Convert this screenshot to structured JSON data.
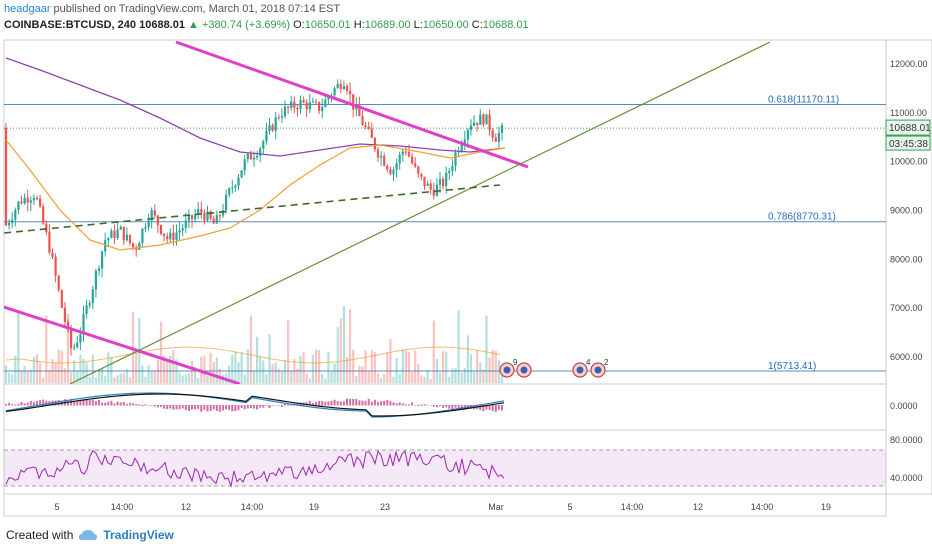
{
  "header": {
    "user": "headgaar",
    "published": " published on TradingView.com, March 01, 2018 07:14 EST",
    "symbol": "COINBASE:BTCUSD, 240",
    "last": "10688.01",
    "change": "▲ +380.74 (+3.69%)",
    "o_label": "O:",
    "o_value": "10650.01",
    "h_label": "H:",
    "h_value": "10689.00",
    "l_label": "L:",
    "l_value": "10650.00",
    "c_label": "C:",
    "c_value": "10688.01"
  },
  "footer": {
    "created": "Created with",
    "brand": "TradingView"
  },
  "chart_data": {
    "type": "candlestick",
    "price_axis": [
      "12000.00",
      "11000.00",
      "10000.00",
      "9000.00",
      "8000.00",
      "7000.00",
      "6000.00"
    ],
    "time_axis": [
      "5",
      "14:00",
      "12",
      "14:00",
      "19",
      "23",
      "Mar",
      "5",
      "14:00",
      "12",
      "14:00",
      "19"
    ],
    "price_tag": "10688.01",
    "countdown_tag": "03:45:38",
    "fib_levels": [
      {
        "label": "0.618(11170.11)",
        "value": 11170.11
      },
      {
        "label": "0.786(8770.31)",
        "value": 8770.31
      },
      {
        "label": "1(5713.41)",
        "value": 5713.41
      }
    ],
    "macd_axis": [
      "0.0000"
    ],
    "rsi_axis": [
      "80.0000",
      "40.0000"
    ],
    "event_badges": [
      "9",
      "4",
      "2"
    ],
    "colors": {
      "up": "#26a69a",
      "down": "#ef5350",
      "trendline": "#e040c8",
      "support": "#6b8e3a",
      "fib": "#2a6db5",
      "ma_long": "#8e44ad",
      "ma_short": "#f0a030",
      "rsi": "#9c27b0"
    }
  }
}
